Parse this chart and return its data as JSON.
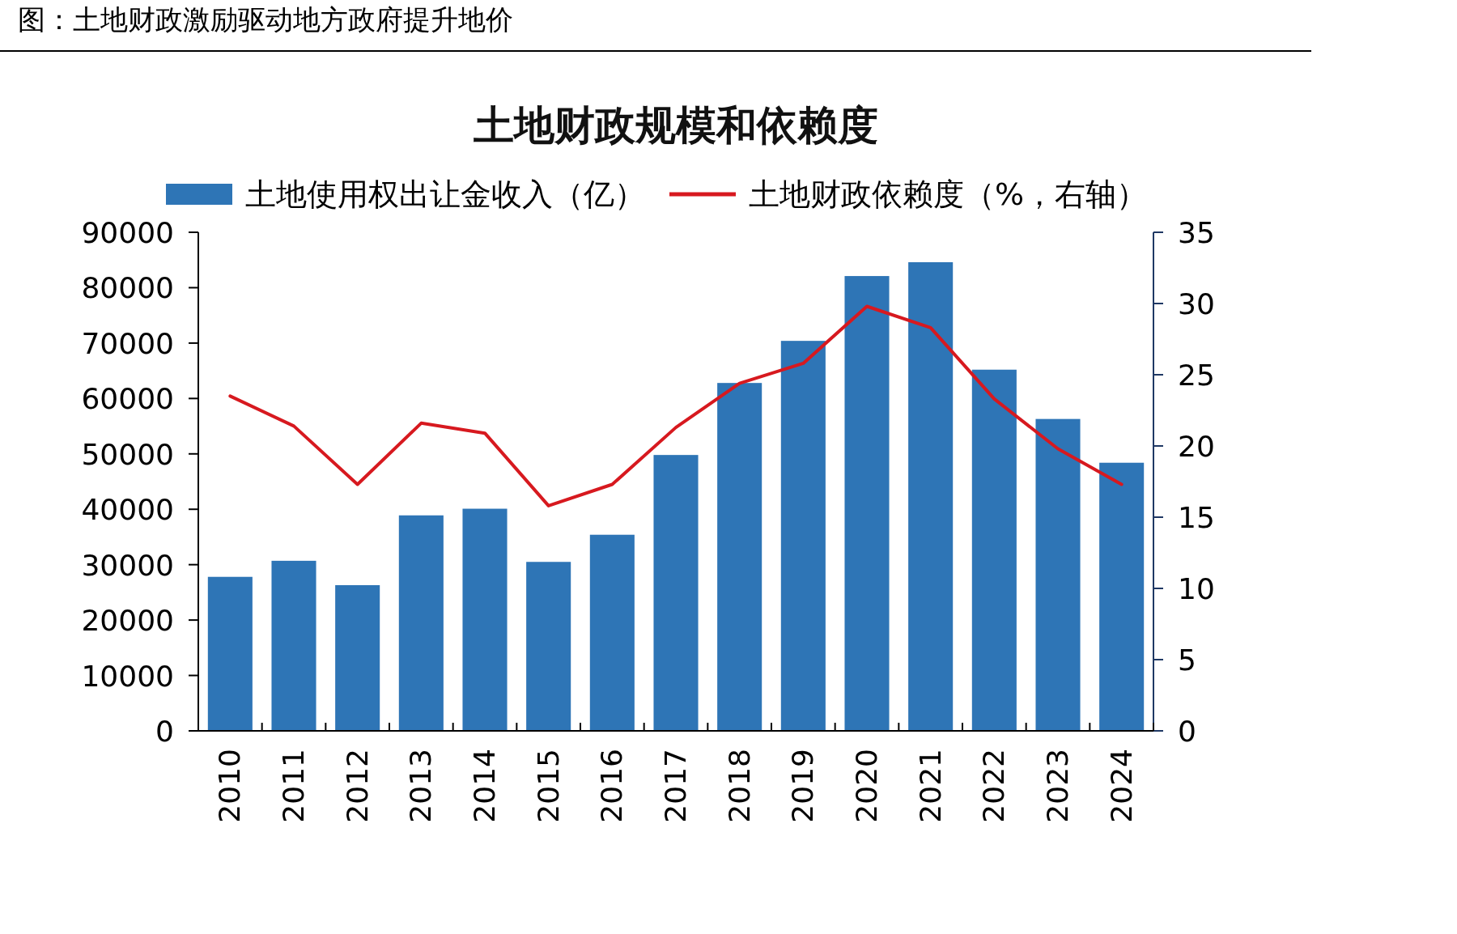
{
  "chart_data": {
    "type": "bar",
    "title": "图：土地财政激励驱动地方政府提升地价",
    "subtitle": "土地财政规模和依赖度",
    "categories": [
      "2010",
      "2011",
      "2012",
      "2013",
      "2014",
      "2015",
      "2016",
      "2017",
      "2018",
      "2019",
      "2020",
      "2021",
      "2022",
      "2023",
      "2024"
    ],
    "series": [
      {
        "name": "土地使用权出让金收入（亿）",
        "color": "#2e75b6",
        "values": [
          27800,
          30700,
          26300,
          38900,
          40100,
          30500,
          35400,
          49800,
          62800,
          70400,
          82100,
          84600,
          65200,
          56300,
          48400
        ]
      },
      {
        "name": "土地财政依赖度（%，右轴）",
        "type": "line",
        "axis": "y2",
        "color": "#d7191f",
        "values": [
          23.5,
          21.4,
          17.3,
          21.6,
          20.9,
          15.8,
          17.3,
          21.3,
          24.4,
          25.8,
          29.8,
          28.3,
          23.3,
          19.8,
          17.3
        ]
      }
    ],
    "ylim": [
      0,
      90000
    ],
    "yticks": [
      0,
      10000,
      20000,
      30000,
      40000,
      50000,
      60000,
      70000,
      80000,
      90000
    ],
    "y2lim": [
      0,
      35
    ],
    "y2ticks": [
      0,
      5,
      10,
      15,
      20,
      25,
      30,
      35
    ],
    "legend": "top",
    "grid": false
  }
}
